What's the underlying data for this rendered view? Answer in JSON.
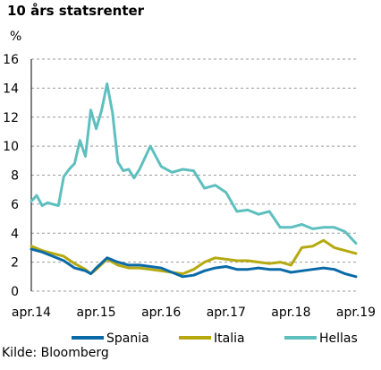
{
  "chart_data": {
    "type": "line",
    "title": "10 års statsrenter",
    "ylabel": "%",
    "source": "Kilde: Bloomberg",
    "ylim": [
      0,
      16
    ],
    "y_ticks": [
      "0",
      "2",
      "4",
      "6",
      "8",
      "10",
      "12",
      "14",
      "16"
    ],
    "x_tick_labels": [
      "apr.14",
      "apr.15",
      "apr.16",
      "apr.17",
      "apr.18",
      "apr.19"
    ],
    "x_range": [
      "2014-04",
      "2019-04"
    ],
    "grid": "horizontal dashed",
    "legend_position": "bottom",
    "series": [
      {
        "name": "Spania",
        "color": "#0a6aa8",
        "x": [
          "2014-04",
          "2014-06",
          "2014-08",
          "2014-10",
          "2014-12",
          "2015-02",
          "2015-03",
          "2015-04",
          "2015-06",
          "2015-08",
          "2015-10",
          "2015-12",
          "2016-02",
          "2016-04",
          "2016-06",
          "2016-08",
          "2016-10",
          "2016-12",
          "2017-02",
          "2017-04",
          "2017-06",
          "2017-08",
          "2017-10",
          "2017-12",
          "2018-02",
          "2018-04",
          "2018-06",
          "2018-08",
          "2018-10",
          "2018-12",
          "2019-02",
          "2019-04"
        ],
        "values": [
          2.9,
          2.7,
          2.4,
          2.1,
          1.6,
          1.4,
          1.2,
          1.6,
          2.3,
          2.0,
          1.8,
          1.8,
          1.7,
          1.6,
          1.3,
          1.0,
          1.1,
          1.4,
          1.6,
          1.7,
          1.5,
          1.5,
          1.6,
          1.5,
          1.5,
          1.3,
          1.4,
          1.5,
          1.6,
          1.5,
          1.2,
          1.0
        ]
      },
      {
        "name": "Italia",
        "color": "#b5a90f",
        "x": [
          "2014-04",
          "2014-06",
          "2014-08",
          "2014-10",
          "2014-12",
          "2015-02",
          "2015-03",
          "2015-04",
          "2015-06",
          "2015-08",
          "2015-10",
          "2015-12",
          "2016-02",
          "2016-04",
          "2016-06",
          "2016-08",
          "2016-10",
          "2016-12",
          "2017-02",
          "2017-04",
          "2017-06",
          "2017-08",
          "2017-10",
          "2017-12",
          "2018-02",
          "2018-04",
          "2018-06",
          "2018-08",
          "2018-10",
          "2018-12",
          "2019-02",
          "2019-04"
        ],
        "values": [
          3.1,
          2.8,
          2.6,
          2.4,
          1.9,
          1.5,
          1.2,
          1.5,
          2.2,
          1.8,
          1.6,
          1.6,
          1.5,
          1.4,
          1.3,
          1.2,
          1.5,
          2.0,
          2.3,
          2.2,
          2.1,
          2.1,
          2.0,
          1.9,
          2.0,
          1.8,
          3.0,
          3.1,
          3.5,
          3.0,
          2.8,
          2.6
        ]
      },
      {
        "name": "Hellas",
        "color": "#5fbfbf",
        "x": [
          "2014-04",
          "2014-05",
          "2014-06",
          "2014-07",
          "2014-08",
          "2014-09",
          "2014-10",
          "2014-11",
          "2014-12",
          "2015-01",
          "2015-02",
          "2015-03",
          "2015-04",
          "2015-05",
          "2015-06",
          "2015-07",
          "2015-08",
          "2015-09",
          "2015-10",
          "2015-11",
          "2015-12",
          "2016-02",
          "2016-04",
          "2016-06",
          "2016-08",
          "2016-10",
          "2016-12",
          "2017-02",
          "2017-04",
          "2017-06",
          "2017-08",
          "2017-10",
          "2017-12",
          "2018-02",
          "2018-04",
          "2018-06",
          "2018-08",
          "2018-10",
          "2018-12",
          "2019-02",
          "2019-04"
        ],
        "values": [
          6.2,
          6.6,
          5.9,
          6.1,
          6.0,
          5.9,
          7.9,
          8.4,
          8.8,
          10.4,
          9.3,
          12.5,
          11.2,
          12.5,
          14.3,
          12.3,
          8.9,
          8.3,
          8.4,
          7.8,
          8.4,
          10.0,
          8.6,
          8.2,
          8.4,
          8.3,
          7.1,
          7.3,
          6.8,
          5.5,
          5.6,
          5.3,
          5.5,
          4.4,
          4.4,
          4.6,
          4.3,
          4.4,
          4.4,
          4.1,
          3.3
        ]
      }
    ]
  }
}
